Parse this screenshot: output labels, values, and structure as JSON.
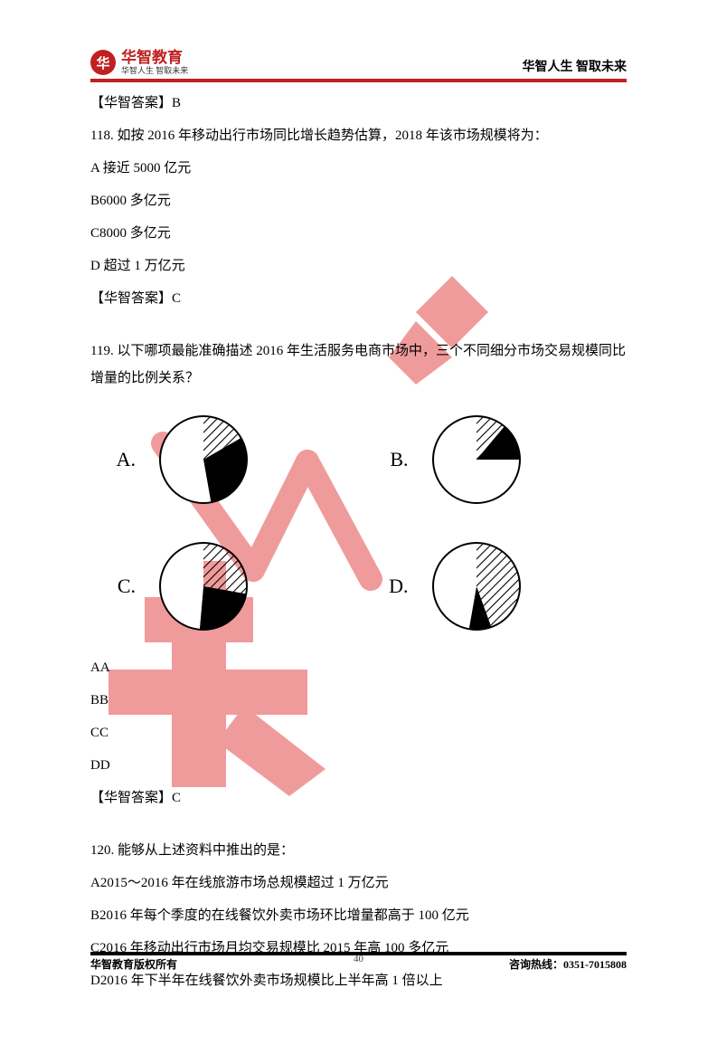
{
  "header": {
    "logo_char": "华",
    "logo_title": "华智教育",
    "logo_sub": "华智人生 智取未来",
    "right": "华智人生 智取未来"
  },
  "content": {
    "ans117": "【华智答案】B",
    "q118": "118. 如按 2016 年移动出行市场同比增长趋势估算，2018 年该市场规模将为：",
    "q118a": "A 接近 5000 亿元",
    "q118b": "B6000 多亿元",
    "q118c": "C8000 多亿元",
    "q118d": "D 超过 1 万亿元",
    "ans118": "【华智答案】C",
    "q119": "119. 以下哪项最能准确描述 2016 年生活服务电商市场中，三个不同细分市场交易规模同比增量的比例关系？",
    "opts": {
      "aa": "AA",
      "bb": "BB",
      "cc": "CC",
      "dd": "DD"
    },
    "ans119": "【华智答案】C",
    "q120": "120. 能够从上述资料中推出的是：",
    "q120a": "A2015～2016 年在线旅游市场总规模超过 1 万亿元",
    "q120b": "B2016 年每个季度的在线餐饮外卖市场环比增量都高于 100 亿元",
    "q120c": "C2016 年移动出行市场月均交易规模比 2015 年高 100 多亿元",
    "q120d": "D2016 年下半年在线餐饮外卖市场规模比上半年高 1 倍以上"
  },
  "charts": {
    "stroke": "#000000",
    "stroke_width": 2,
    "radius": 48,
    "labels": {
      "A": "A.",
      "B": "B.",
      "C": "C.",
      "D": "D."
    },
    "A": {
      "slices": [
        {
          "start": -90,
          "end": -30,
          "fill": "hatch"
        },
        {
          "start": -30,
          "end": 80,
          "fill": "#000000"
        },
        {
          "start": 80,
          "end": 270,
          "fill": "#ffffff"
        }
      ]
    },
    "B": {
      "slices": [
        {
          "start": -90,
          "end": -50,
          "fill": "hatch"
        },
        {
          "start": -50,
          "end": 0,
          "fill": "#000000"
        },
        {
          "start": 0,
          "end": 270,
          "fill": "#ffffff"
        }
      ]
    },
    "C": {
      "slices": [
        {
          "start": -90,
          "end": 10,
          "fill": "hatch"
        },
        {
          "start": 10,
          "end": 95,
          "fill": "#000000"
        },
        {
          "start": 95,
          "end": 270,
          "fill": "#ffffff"
        }
      ]
    },
    "D": {
      "slices": [
        {
          "start": -90,
          "end": 70,
          "fill": "hatch"
        },
        {
          "start": 70,
          "end": 100,
          "fill": "#000000"
        },
        {
          "start": 100,
          "end": 270,
          "fill": "#ffffff"
        }
      ]
    }
  },
  "footer": {
    "left": "华智教育版权所有",
    "right": "咨询热线：0351-7015808",
    "page": "40"
  },
  "watermark": {
    "color": "#e54b4b"
  }
}
